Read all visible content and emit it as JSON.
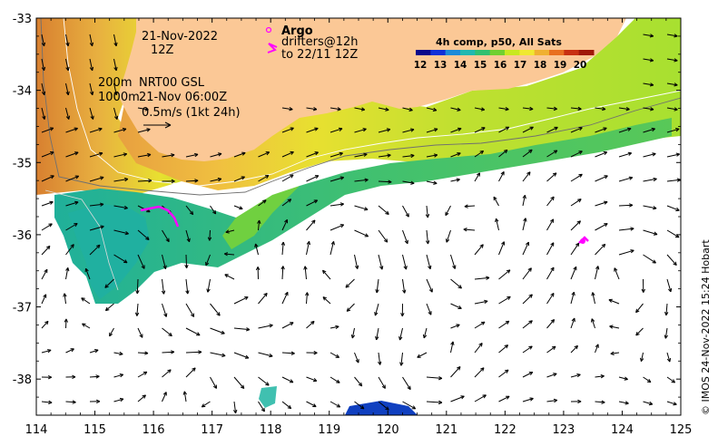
{
  "map": {
    "lon_min": 114,
    "lon_max": 125,
    "lat_min": -38.5,
    "lat_max": -33,
    "lon_ticks": [
      "114",
      "115",
      "116",
      "117",
      "118",
      "119",
      "120",
      "121",
      "122",
      "123",
      "124",
      "125"
    ],
    "lat_ticks": [
      "-33",
      "-34",
      "-35",
      "-36",
      "-37",
      "-38"
    ]
  },
  "annotations": {
    "date": "21-Nov-2022",
    "hour": "12Z",
    "iso_200": "200m",
    "iso_1000": "1000m",
    "product": "NRT00 GSL",
    "product_time": "21-Nov 06:00Z",
    "scale_label": "0.5m/s (1kt 24h)",
    "argo_label": "Argo",
    "drifters_line1": "drifters@12h",
    "drifters_line2": "to 22/11 12Z"
  },
  "colorbar": {
    "title": "4h comp, p50, All Sats",
    "labels": [
      "12",
      "13",
      "14",
      "15",
      "16",
      "17",
      "18",
      "19",
      "20"
    ],
    "colors": [
      "#08088a",
      "#1030d8",
      "#1c8ad8",
      "#20b8b0",
      "#30c070",
      "#70d030",
      "#c8e820",
      "#f0e830",
      "#f0b030",
      "#e87020",
      "#c83010",
      "#a01808"
    ]
  },
  "colors": {
    "land": "#fbc896",
    "argo": "#ff00ff",
    "drifter": "#ff00ff"
  },
  "credit": "© IMOS 24-Nov-2022 15:24 Hobart"
}
